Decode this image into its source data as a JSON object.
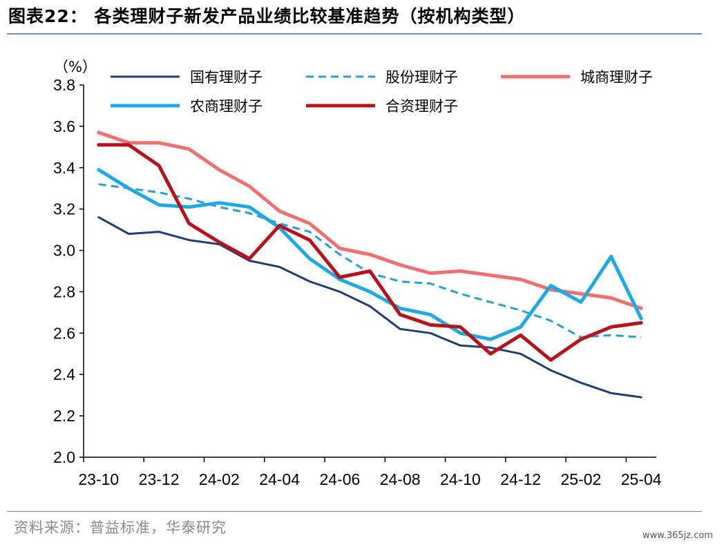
{
  "header": {
    "title": "图表22：  各类理财子新发产品业绩比较基准趋势（按机构类型）"
  },
  "footer": {
    "source": "资料来源：普益标准，华泰研究",
    "watermark": "www.365jz.com"
  },
  "chart_data": {
    "type": "line",
    "unit_label": "（%）",
    "ylim": [
      2.0,
      3.8
    ],
    "y_ticks": [
      "2.0",
      "2.2",
      "2.4",
      "2.6",
      "2.8",
      "3.0",
      "3.2",
      "3.4",
      "3.6",
      "3.8"
    ],
    "x": [
      "23-10",
      "23-11",
      "23-12",
      "24-01",
      "24-02",
      "24-03",
      "24-04",
      "24-05",
      "24-06",
      "24-07",
      "24-08",
      "24-09",
      "24-10",
      "24-11",
      "24-12",
      "25-01",
      "25-02",
      "25-03",
      "25-04"
    ],
    "x_tick_labels": [
      "23-10",
      "23-12",
      "24-02",
      "24-04",
      "24-06",
      "24-08",
      "24-10",
      "24-12",
      "25-02",
      "25-04"
    ],
    "grid": false,
    "legend_position": "top",
    "series": [
      {
        "name": "国有理财子",
        "color": "#1f3c78",
        "dash": false,
        "width": 3,
        "values": [
          3.16,
          3.08,
          3.09,
          3.05,
          3.03,
          2.95,
          2.92,
          2.85,
          2.8,
          2.73,
          2.62,
          2.6,
          2.54,
          2.53,
          2.5,
          2.42,
          2.36,
          2.31,
          2.29
        ]
      },
      {
        "name": "股份理财子",
        "color": "#22a0e0",
        "dash": true,
        "width": 3,
        "values": [
          3.32,
          3.3,
          3.28,
          3.25,
          3.21,
          3.18,
          3.13,
          3.09,
          2.98,
          2.89,
          2.85,
          2.84,
          2.79,
          2.75,
          2.71,
          2.66,
          2.58,
          2.59,
          2.58
        ]
      },
      {
        "name": "城商理财子",
        "color": "#f07070",
        "dash": false,
        "width": 5,
        "values": [
          3.57,
          3.52,
          3.52,
          3.49,
          3.39,
          3.31,
          3.19,
          3.13,
          3.01,
          2.98,
          2.93,
          2.89,
          2.9,
          2.88,
          2.86,
          2.81,
          2.79,
          2.77,
          2.72
        ]
      },
      {
        "name": "农商理财子",
        "color": "#1ea8e8",
        "dash": false,
        "width": 5,
        "values": [
          3.39,
          3.3,
          3.22,
          3.21,
          3.23,
          3.21,
          3.11,
          2.96,
          2.86,
          2.8,
          2.72,
          2.69,
          2.6,
          2.57,
          2.63,
          2.83,
          2.75,
          2.97,
          2.67
        ]
      },
      {
        "name": "合资理财子",
        "color": "#b8121b",
        "dash": false,
        "width": 5,
        "values": [
          3.51,
          3.51,
          3.41,
          3.13,
          3.04,
          2.96,
          3.12,
          3.05,
          2.87,
          2.9,
          2.69,
          2.64,
          2.63,
          2.5,
          2.59,
          2.47,
          2.57,
          2.63,
          2.65
        ]
      }
    ]
  }
}
